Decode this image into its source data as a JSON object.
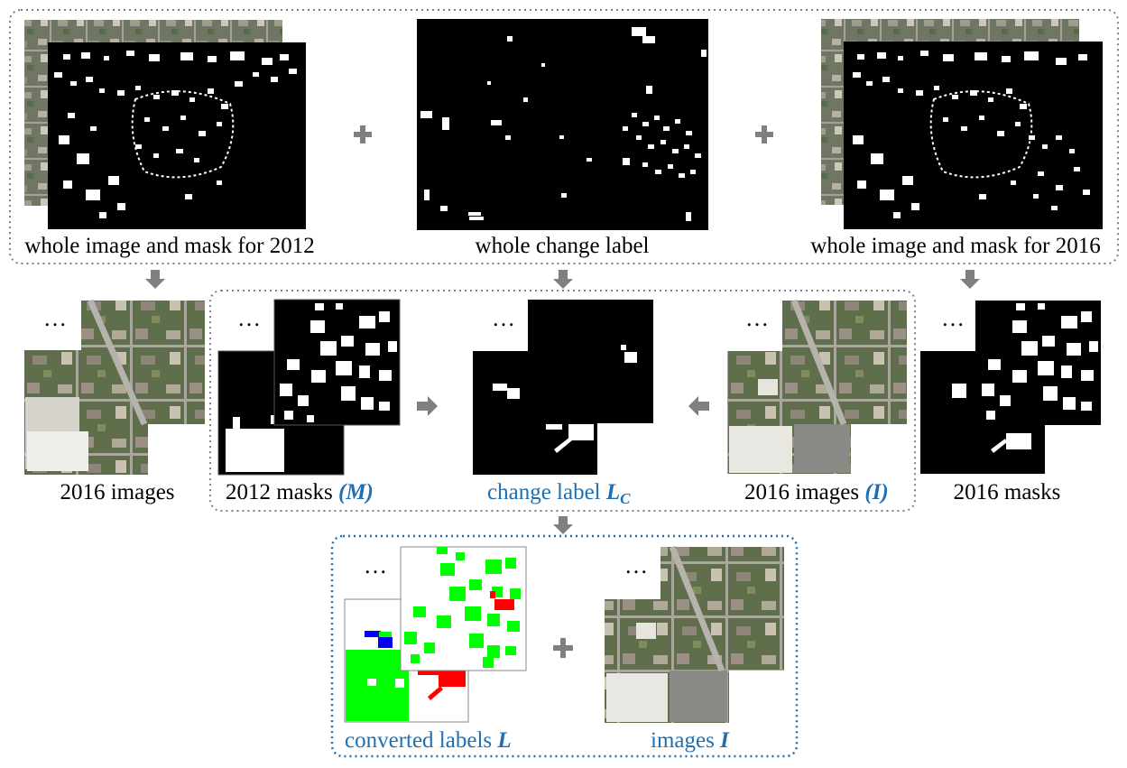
{
  "colors": {
    "black_mask": "#000000",
    "white_building": "#ffffff",
    "unchanged": "#00ff00",
    "new_building": "#ff0000",
    "demolished": "#0000ff",
    "arrow": "#7f7f7f",
    "accent_text": "#1f6fb3",
    "gray_border": "#7f7f7f",
    "blue_border": "#1f6fb3"
  },
  "icons": {
    "plus": "plus-icon",
    "arrow": "arrow-icon",
    "ellipsis": "ellipsis-icon"
  },
  "labels": {
    "ellipsis": "…",
    "top_left": "whole image and mask for 2012",
    "top_center": "whole change label",
    "top_right": "whole image and mask for 2016",
    "mid_images_2016": "2016 images",
    "mid_masks_2012": "2012 masks ",
    "mid_masks_2012_sym": "(M)",
    "mid_change_label": "change label ",
    "mid_change_label_sym": "L",
    "mid_change_label_sub": "C",
    "mid_images_2016_I": "2016 images ",
    "mid_images_2016_I_sym": "(I)",
    "mid_masks_2016": "2016 masks",
    "bottom_converted": "converted labels ",
    "bottom_converted_sym": "L",
    "bottom_images": "images ",
    "bottom_images_sym": "I"
  }
}
